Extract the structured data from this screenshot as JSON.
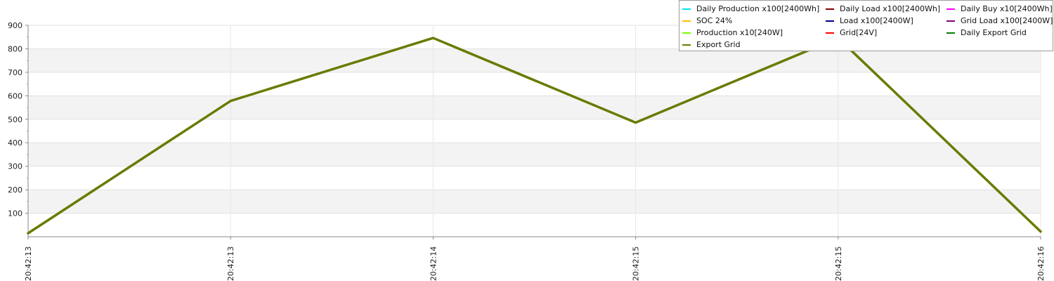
{
  "chart_data": {
    "type": "line",
    "x": [
      "20:42:13",
      "20:42:13",
      "20:42:14",
      "20:42:15",
      "20:42:15",
      "20:42:16"
    ],
    "ylim": [
      0,
      900
    ],
    "y_ticks": [
      100,
      200,
      300,
      400,
      500,
      600,
      700,
      800,
      900
    ],
    "grid": true,
    "legend_position": "top-right",
    "series": [
      {
        "name": "Daily Production x100[2400Wh]",
        "color": "#00e5ee",
        "values": null
      },
      {
        "name": "Daily Load x100[2400Wh]",
        "color": "#8b0000",
        "values": null
      },
      {
        "name": "Daily Buy x10[2400Wh]",
        "color": "#ff00ff",
        "values": null
      },
      {
        "name": "SOC 24%",
        "color": "#ffc000",
        "values": null
      },
      {
        "name": "Load x100[2400W]",
        "color": "#00008b",
        "values": null
      },
      {
        "name": "Grid Load x100[2400W]",
        "color": "#800080",
        "values": null
      },
      {
        "name": "Production x10[240W]",
        "color": "#7cfc00",
        "values": null
      },
      {
        "name": "Grid[24V]",
        "color": "#ff0000",
        "values": null
      },
      {
        "name": "Daily Export Grid",
        "color": "#008000",
        "values": null
      },
      {
        "name": "Export Grid",
        "color": "#6b7a00",
        "values": [
          15,
          578,
          846,
          486,
          846,
          22
        ]
      }
    ]
  }
}
